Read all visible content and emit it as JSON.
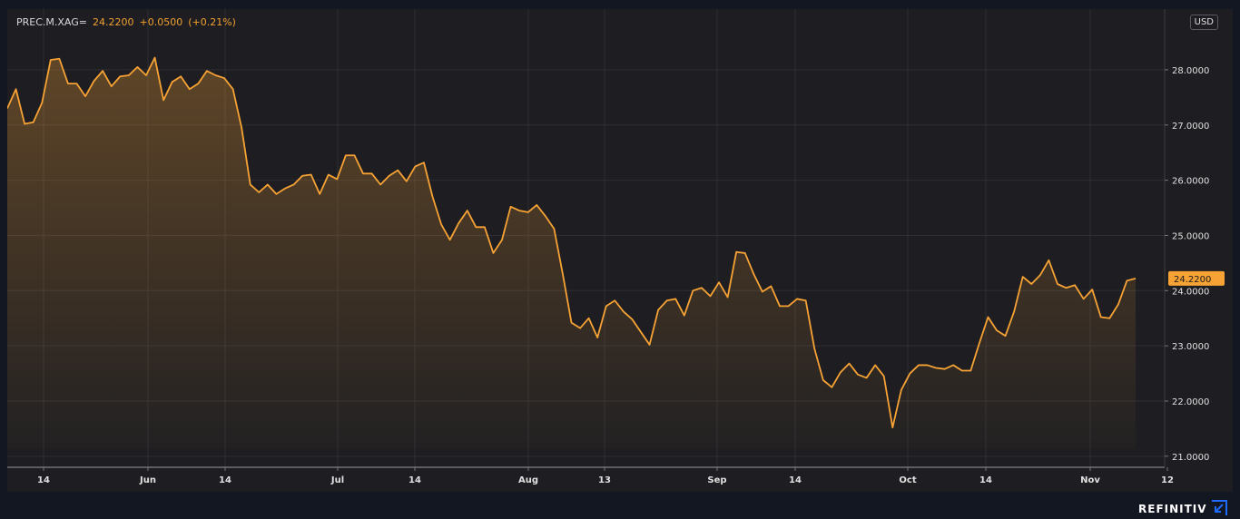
{
  "legend": {
    "symbol": "PREC.M.XAG=",
    "last": "24.2200",
    "change": "+0.0500",
    "change_pct": "(+0.21%)"
  },
  "currency": "USD",
  "brand": "REFINITIV",
  "colors": {
    "line": "#f7a234",
    "price_tag_bg": "#f7a234",
    "plot_bg": "#1e1e22",
    "page_bg": "#131722",
    "grid": "#2e2e33",
    "axis_text": "#e0e0e0"
  },
  "chart_data": {
    "type": "area",
    "title": "",
    "xlabel": "",
    "ylabel": "",
    "ylim": [
      20.8,
      29.1
    ],
    "grid": true,
    "x_ticks": [
      "14",
      "Jun",
      "14",
      "Jul",
      "14",
      "Aug",
      "13",
      "Sep",
      "14",
      "Oct",
      "14",
      "Nov",
      "12"
    ],
    "y_ticks": [
      "21.0000",
      "22.0000",
      "23.0000",
      "24.0000",
      "25.0000",
      "26.0000",
      "27.0000",
      "28.0000"
    ],
    "last_price_label": "24.2200",
    "series": [
      {
        "values": [
          27.3,
          27.65,
          27.02,
          27.05,
          27.4,
          28.18,
          28.2,
          27.75,
          27.75,
          27.52,
          27.8,
          27.98,
          27.7,
          27.88,
          27.9,
          28.05,
          27.9,
          28.22,
          27.45,
          27.78,
          27.88,
          27.65,
          27.75,
          27.98,
          27.9,
          27.85,
          27.65,
          26.95,
          25.92,
          25.78,
          25.92,
          25.75,
          25.85,
          25.92,
          26.08,
          26.1,
          25.75,
          26.1,
          26.02,
          26.45,
          26.45,
          26.12,
          26.12,
          25.92,
          26.08,
          26.18,
          25.98,
          26.25,
          26.32,
          25.7,
          25.2,
          24.92,
          25.22,
          25.45,
          25.15,
          25.15,
          24.68,
          24.92,
          25.52,
          25.45,
          25.42,
          25.55,
          25.35,
          25.12,
          24.3,
          23.42,
          23.32,
          23.5,
          23.15,
          23.72,
          23.82,
          23.62,
          23.48,
          23.25,
          23.02,
          23.65,
          23.82,
          23.85,
          23.55,
          24.0,
          24.05,
          23.9,
          24.15,
          23.88,
          24.7,
          24.68,
          24.3,
          23.98,
          24.08,
          23.72,
          23.72,
          23.85,
          23.82,
          22.95,
          22.38,
          22.25,
          22.52,
          22.68,
          22.48,
          22.42,
          22.65,
          22.45,
          21.52,
          22.2,
          22.5,
          22.65,
          22.65,
          22.6,
          22.58,
          22.65,
          22.55,
          22.55,
          23.05,
          23.52,
          23.28,
          23.18,
          23.62,
          24.25,
          24.12,
          24.28,
          24.55,
          24.12,
          24.05,
          24.1,
          23.85,
          24.02,
          23.52,
          23.5,
          23.75,
          24.18,
          24.22
        ]
      }
    ]
  }
}
